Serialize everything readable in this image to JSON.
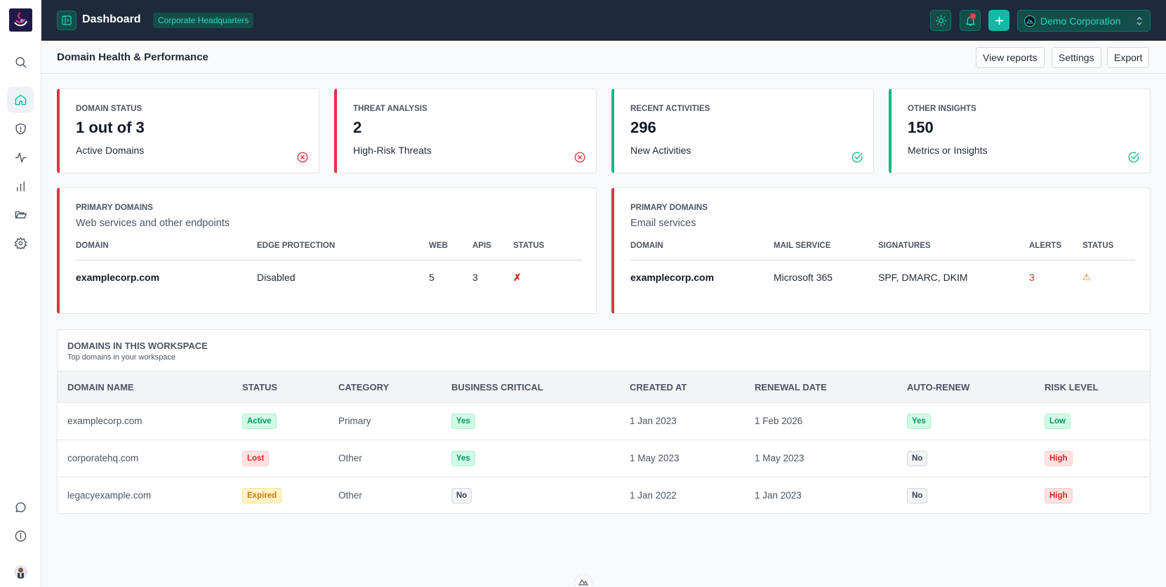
{
  "topbar": {
    "title": "Dashboard",
    "workspace": "Corporate Headquarters",
    "org_name": "Demo Corporation"
  },
  "header": {
    "title": "Domain Health & Performance",
    "view_reports": "View reports",
    "settings": "Settings",
    "export": "Export"
  },
  "stats": [
    {
      "label": "DOMAIN STATUS",
      "value": "1 out of 3",
      "desc": "Active Domains",
      "state": "error"
    },
    {
      "label": "THREAT ANALYSIS",
      "value": "2",
      "desc": "High-Risk Threats",
      "state": "error"
    },
    {
      "label": "RECENT ACTIVITIES",
      "value": "296",
      "desc": "New Activities",
      "state": "ok"
    },
    {
      "label": "OTHER INSIGHTS",
      "value": "150",
      "desc": "Metrics or Insights",
      "state": "ok"
    }
  ],
  "web_panel": {
    "label": "PRIMARY DOMAINS",
    "subtitle": "Web services and other endpoints",
    "columns": [
      "DOMAIN",
      "EDGE PROTECTION",
      "WEB",
      "APIS",
      "STATUS"
    ],
    "row": {
      "domain": "examplecorp.com",
      "edge": "Disabled",
      "web": "5",
      "apis": "3",
      "status": "✗"
    }
  },
  "email_panel": {
    "label": "PRIMARY DOMAINS",
    "subtitle": "Email services",
    "columns": [
      "DOMAIN",
      "MAIL SERVICE",
      "SIGNATURES",
      "ALERTS",
      "STATUS"
    ],
    "row": {
      "domain": "examplecorp.com",
      "mail": "Microsoft 365",
      "signatures": "SPF, DMARC, DKIM",
      "alerts": "3",
      "status": "⚠"
    }
  },
  "workspace_table": {
    "title": "DOMAINS IN THIS WORKSPACE",
    "subtitle": "Top domains in your workspace",
    "columns": [
      "DOMAIN NAME",
      "STATUS",
      "CATEGORY",
      "BUSINESS CRITICAL",
      "CREATED AT",
      "RENEWAL DATE",
      "AUTO-RENEW",
      "RISK LEVEL"
    ],
    "rows": [
      {
        "domain": "examplecorp.com",
        "status": "Active",
        "category": "Primary",
        "critical": "Yes",
        "created": "1 Jan 2023",
        "renewal": "1 Feb 2026",
        "autorenew": "Yes",
        "risk": "Low"
      },
      {
        "domain": "corporatehq.com",
        "status": "Lost",
        "category": "Other",
        "critical": "Yes",
        "created": "1 May 2023",
        "renewal": "1 May 2023",
        "autorenew": "No",
        "risk": "High"
      },
      {
        "domain": "legacyexample.com",
        "status": "Expired",
        "category": "Other",
        "critical": "No",
        "created": "1 Jan 2022",
        "renewal": "1 Jan 2023",
        "autorenew": "No",
        "risk": "High"
      }
    ]
  },
  "colors": {
    "accent": "#14b8a6",
    "error": "#dc3545",
    "success": "#10b981",
    "topbar": "#1e293b"
  }
}
